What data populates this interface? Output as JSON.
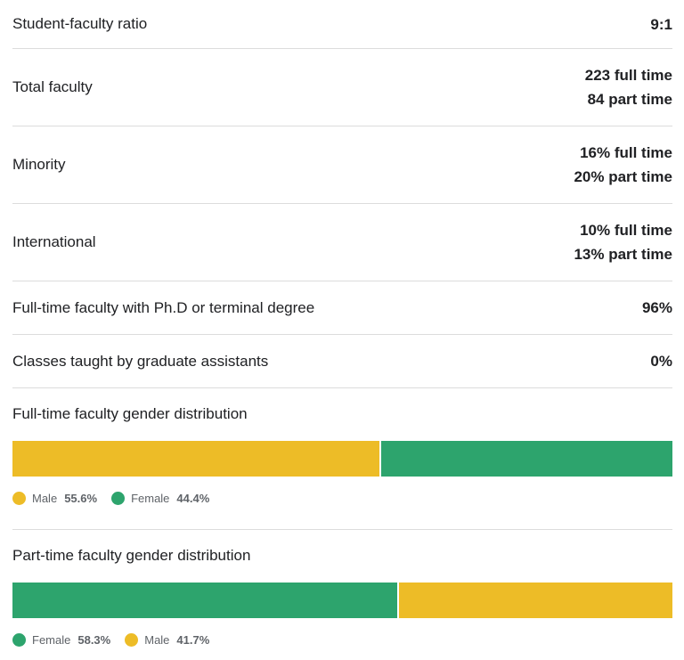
{
  "stats": [
    {
      "label": "Student-faculty ratio",
      "values": [
        "9:1"
      ]
    },
    {
      "label": "Total faculty",
      "values": [
        "223 full time",
        "84 part time"
      ]
    },
    {
      "label": "Minority",
      "values": [
        "16% full time",
        "20% part time"
      ]
    },
    {
      "label": "International",
      "values": [
        "10% full time",
        "13% part time"
      ]
    },
    {
      "label": "Full-time faculty with Ph.D or terminal degree",
      "values": [
        "96%"
      ]
    },
    {
      "label": "Classes taught by graduate assistants",
      "values": [
        "0%"
      ]
    }
  ],
  "fulltime_gender": {
    "title": "Full-time faculty gender distribution",
    "segments": [
      {
        "name": "Male",
        "pct_label": "55.6%",
        "value": 55.6,
        "color": "#EDBC27"
      },
      {
        "name": "Female",
        "pct_label": "44.4%",
        "value": 44.4,
        "color": "#2DA46D"
      }
    ]
  },
  "parttime_gender": {
    "title": "Part-time faculty gender distribution",
    "segments": [
      {
        "name": "Female",
        "pct_label": "58.3%",
        "value": 58.3,
        "color": "#2DA46D"
      },
      {
        "name": "Male",
        "pct_label": "41.7%",
        "value": 41.7,
        "color": "#EDBC27"
      }
    ]
  }
}
